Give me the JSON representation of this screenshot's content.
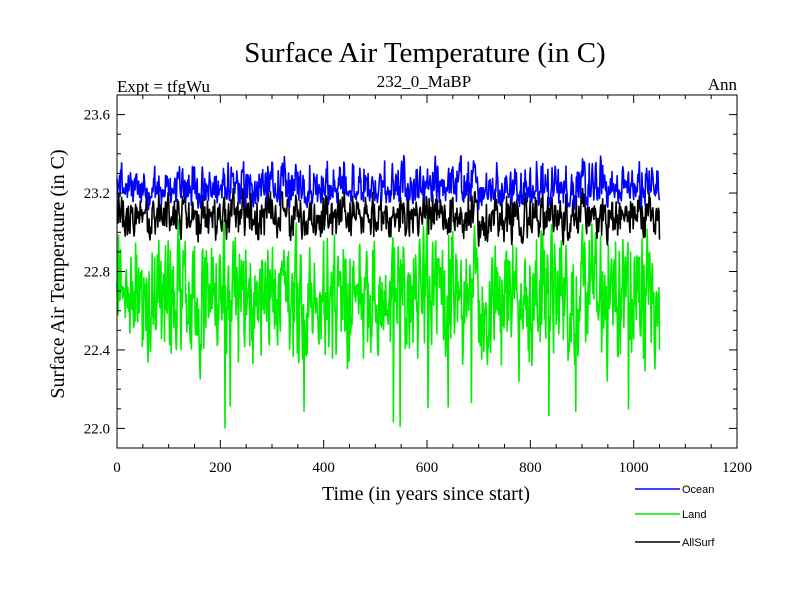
{
  "chart_data": {
    "type": "line",
    "title": "Surface Air Temperature (in C)",
    "subtitle_left": "Expt = tfgWu",
    "subtitle_center": "232_0_MaBP",
    "subtitle_right": "Ann",
    "xlabel": "Time (in years since start)",
    "ylabel": "Surface Air Temperature (in C)",
    "xlim": [
      0,
      1200
    ],
    "ylim": [
      21.9,
      23.7
    ],
    "xticks": [
      0,
      200,
      400,
      600,
      800,
      1000,
      1200
    ],
    "xtick_labels": [
      "0",
      "200",
      "400",
      "600",
      "800",
      "1000",
      "1200"
    ],
    "yticks": [
      22.0,
      22.4,
      22.8,
      23.2,
      23.6
    ],
    "ytick_labels": [
      "22.0",
      "22.4",
      "22.8",
      "23.2",
      "23.6"
    ],
    "x_range": [
      0,
      1050
    ],
    "legend_position": "bottom-right",
    "series": [
      {
        "name": "Ocean",
        "color": "#0000ff",
        "mean": 23.22,
        "min": 23.05,
        "max": 23.47,
        "sample_values": [
          23.2,
          23.28,
          23.15,
          23.4,
          23.22,
          23.3,
          23.12,
          23.45,
          23.25,
          23.18,
          23.35,
          23.2,
          23.47,
          23.22,
          23.3
        ]
      },
      {
        "name": "Land",
        "color": "#00ee00",
        "mean": 22.68,
        "min": 22.0,
        "max": 23.25,
        "sample_values": [
          22.7,
          22.5,
          22.9,
          22.3,
          23.0,
          22.6,
          22.1,
          22.8,
          22.4,
          23.1,
          22.65,
          22.05,
          22.75,
          22.0,
          22.85
        ]
      },
      {
        "name": "AllSurf",
        "color": "#000000",
        "mean": 23.08,
        "min": 22.85,
        "max": 23.3,
        "sample_values": [
          23.05,
          23.15,
          23.0,
          23.22,
          22.95,
          23.1,
          22.9,
          23.2,
          23.08,
          23.0,
          23.18,
          22.88,
          23.12,
          23.05,
          23.25
        ]
      }
    ]
  }
}
